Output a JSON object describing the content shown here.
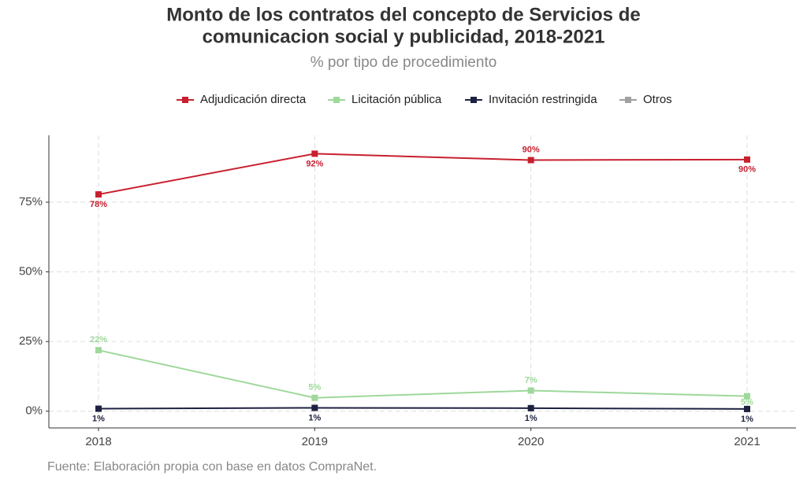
{
  "chart_data": {
    "type": "line",
    "title": [
      "Monto de los contratos del concepto de Servicios de",
      "comunicacion social y publicidad, 2018-2021"
    ],
    "subtitle": "% por tipo de procedimiento",
    "caption": "Fuente: Elaboración propia con base en datos CompraNet.",
    "categories": [
      "2018",
      "2019",
      "2020",
      "2021"
    ],
    "series": [
      {
        "name": "Adjudicación directa",
        "color": "#c8202f",
        "values": [
          77.8,
          92.4,
          90.1,
          90.3
        ],
        "value_labels": [
          "78%",
          "92%",
          "90%",
          "90%"
        ]
      },
      {
        "name": "Licitación pública",
        "color": "#9ed89a",
        "values": [
          21.9,
          4.8,
          7.4,
          5.4
        ],
        "value_labels": [
          "22%",
          "5%",
          "7%",
          "5%"
        ]
      },
      {
        "name": "Invitación restringida",
        "color": "#1e2140",
        "values": [
          0.9,
          1.2,
          1.1,
          0.8
        ],
        "value_labels": [
          "1%",
          "1%",
          "1%",
          "1%"
        ]
      },
      {
        "name": "Otros",
        "color": "#a0a0a0",
        "values": [
          null,
          null,
          null,
          null
        ]
      }
    ],
    "ylim": [
      -6,
      99
    ],
    "yticks": [
      {
        "value": 0,
        "label": "0%"
      },
      {
        "value": 25,
        "label": "25%"
      },
      {
        "value": 50,
        "label": "50%"
      },
      {
        "value": 75,
        "label": "75%"
      }
    ],
    "grid": true,
    "legend": "top"
  }
}
